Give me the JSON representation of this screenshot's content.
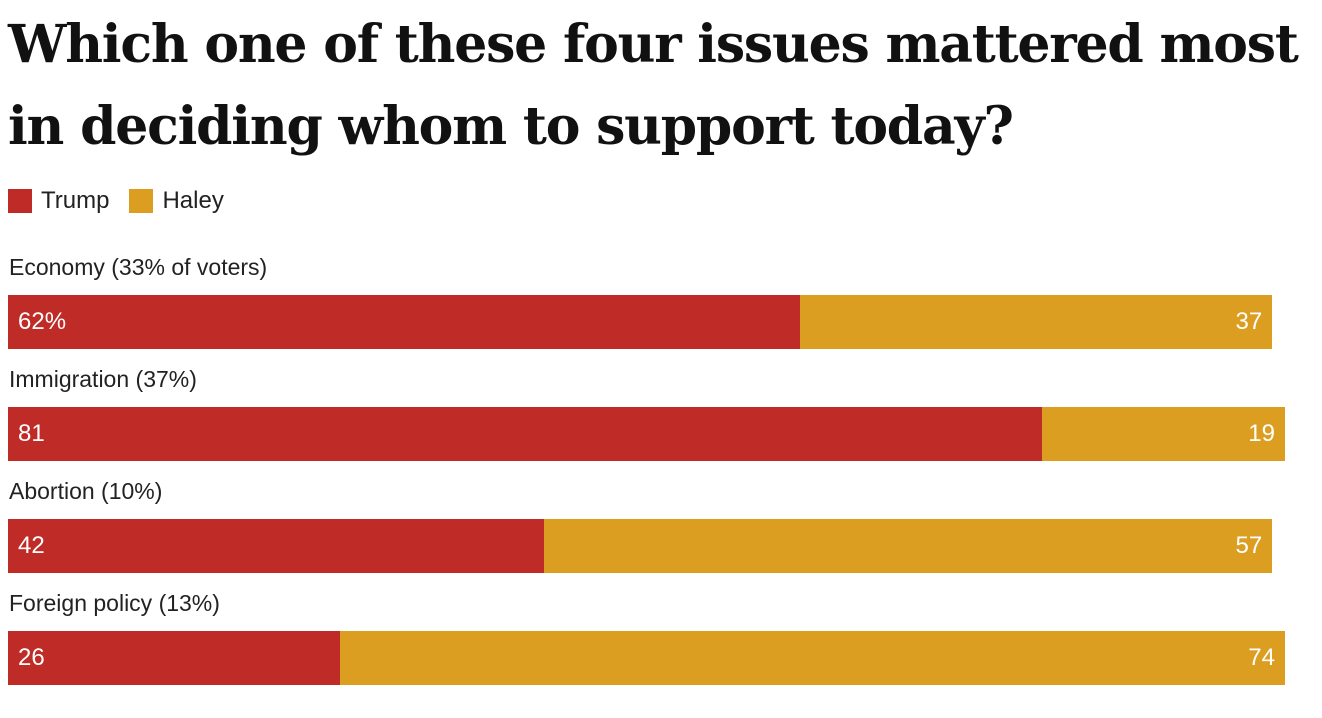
{
  "colors": {
    "trump": "#bf2b26",
    "haley": "#dc9e21"
  },
  "chart_data": {
    "type": "bar",
    "orientation": "horizontal",
    "stacked": true,
    "title": "Which one of these four issues mattered most in deciding whom to support today?",
    "legend": [
      {
        "name": "Trump",
        "color": "#bf2b26"
      },
      {
        "name": "Haley",
        "color": "#dc9e21"
      }
    ],
    "legend_position": "top-left",
    "grid": false,
    "xlim": [
      0,
      100
    ],
    "categories": [
      "Economy (33% of voters)",
      "Immigration (37%)",
      "Abortion (10%)",
      "Foreign policy (13%)"
    ],
    "series": [
      {
        "name": "Trump",
        "values": [
          62,
          81,
          42,
          26
        ],
        "labels": [
          "62%",
          "81",
          "42",
          "26"
        ]
      },
      {
        "name": "Haley",
        "values": [
          37,
          19,
          57,
          74
        ],
        "labels": [
          "37",
          "19",
          "57",
          "74"
        ]
      }
    ]
  }
}
